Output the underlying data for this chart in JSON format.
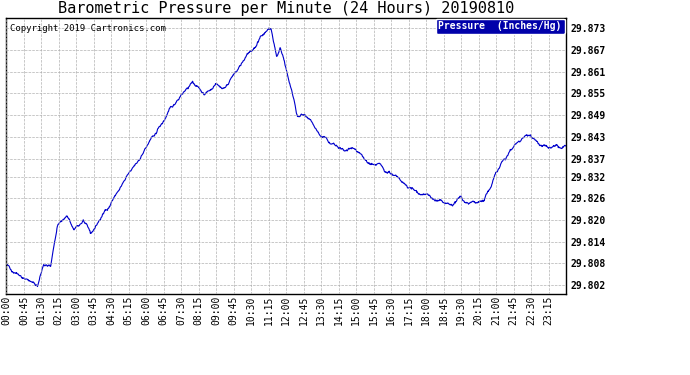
{
  "title": "Barometric Pressure per Minute (24 Hours) 20190810",
  "copyright_text": "Copyright 2019 Cartronics.com",
  "legend_label": "Pressure  (Inches/Hg)",
  "line_color": "#0000cc",
  "legend_bg_color": "#0000aa",
  "legend_text_color": "#ffffff",
  "bg_color": "#ffffff",
  "grid_color": "#aaaaaa",
  "ylim": [
    29.7995,
    29.876
  ],
  "yticks": [
    29.802,
    29.808,
    29.814,
    29.82,
    29.826,
    29.832,
    29.837,
    29.843,
    29.849,
    29.855,
    29.861,
    29.867,
    29.873
  ],
  "title_fontsize": 11,
  "tick_fontsize": 7,
  "copyright_fontsize": 6.5,
  "x_tick_labels": [
    "00:00",
    "00:45",
    "01:30",
    "02:15",
    "03:00",
    "03:45",
    "04:30",
    "05:15",
    "06:00",
    "06:45",
    "07:30",
    "08:15",
    "09:00",
    "09:45",
    "10:30",
    "11:15",
    "12:00",
    "12:45",
    "13:30",
    "14:15",
    "15:00",
    "15:45",
    "16:30",
    "17:15",
    "18:00",
    "18:45",
    "19:30",
    "20:15",
    "21:00",
    "21:45",
    "22:30",
    "23:15"
  ]
}
